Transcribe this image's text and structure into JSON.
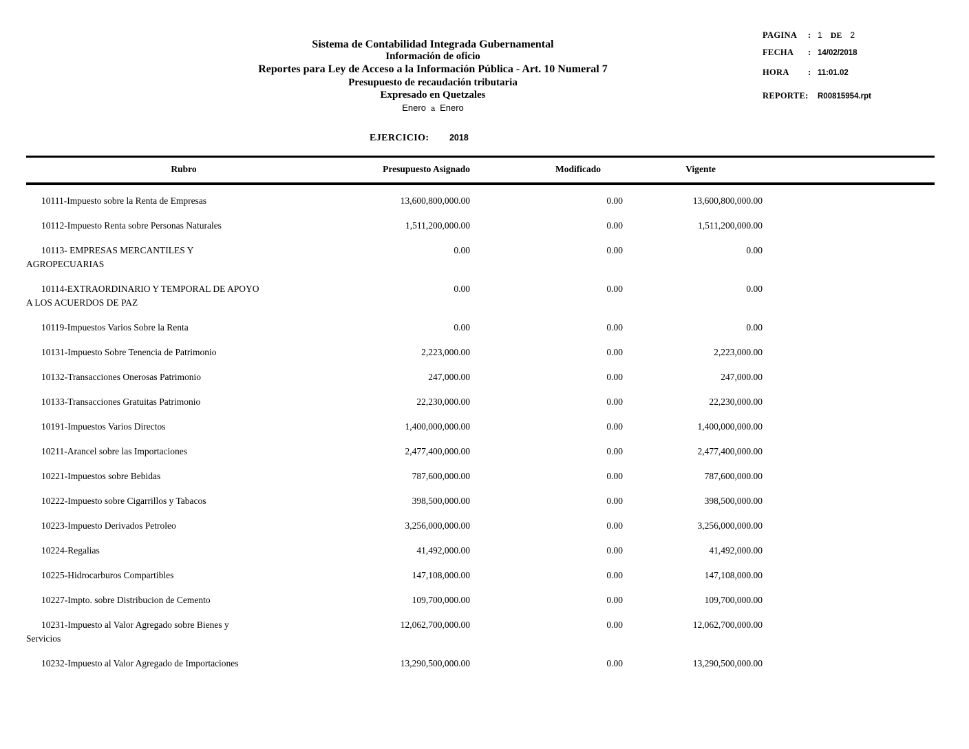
{
  "report_header": {
    "title_lines": [
      "Sistema de Contabilidad Integrada Gubernamental",
      "Información de oficio",
      "Reportes para Ley de Acceso a la Información Pública - Art. 10 Numeral 7",
      "Presupuesto de recaudación tributaria",
      "Expresado en Quetzales"
    ],
    "period": {
      "from": "Enero",
      "connector": "a",
      "to": "Enero"
    },
    "ejercicio_label": "EJERCICIO:",
    "ejercicio_value": "2018"
  },
  "meta": {
    "pagina": {
      "label": "PAGINA",
      "sep": ":",
      "value": "1",
      "de_label": "DE",
      "total": "2"
    },
    "fecha": {
      "label": "FECHA",
      "sep": ":",
      "value": "14/02/2018"
    },
    "hora": {
      "label": "HORA",
      "sep": ":",
      "value": "11:01.02"
    },
    "reporte": {
      "label": "REPORTE:",
      "value": "R00815954.rpt"
    }
  },
  "table": {
    "columns": [
      "Rubro",
      "Presupuesto Asignado",
      "Modificado",
      "Vigente"
    ],
    "rows": [
      {
        "rubro_lines": [
          "10111-Impuesto sobre la Renta de Empresas"
        ],
        "asignado": "13,600,800,000.00",
        "modificado": "0.00",
        "vigente": "13,600,800,000.00"
      },
      {
        "rubro_lines": [
          "10112-Impuesto Renta sobre Personas Naturales"
        ],
        "asignado": "1,511,200,000.00",
        "modificado": "0.00",
        "vigente": "1,511,200,000.00"
      },
      {
        "rubro_lines": [
          "10113- EMPRESAS MERCANTILES Y",
          "AGROPECUARIAS"
        ],
        "asignado": "0.00",
        "modificado": "0.00",
        "vigente": "0.00"
      },
      {
        "rubro_lines": [
          "10114-EXTRAORDINARIO Y TEMPORAL DE APOYO",
          "A LOS ACUERDOS DE PAZ"
        ],
        "asignado": "0.00",
        "modificado": "0.00",
        "vigente": "0.00"
      },
      {
        "rubro_lines": [
          "10119-Impuestos Varios Sobre la Renta"
        ],
        "asignado": "0.00",
        "modificado": "0.00",
        "vigente": "0.00"
      },
      {
        "rubro_lines": [
          "10131-Impuesto Sobre Tenencia de Patrimonio"
        ],
        "asignado": "2,223,000.00",
        "modificado": "0.00",
        "vigente": "2,223,000.00"
      },
      {
        "rubro_lines": [
          "10132-Transacciones Onerosas Patrimonio"
        ],
        "asignado": "247,000.00",
        "modificado": "0.00",
        "vigente": "247,000.00"
      },
      {
        "rubro_lines": [
          "10133-Transacciones Gratuitas Patrimonio"
        ],
        "asignado": "22,230,000.00",
        "modificado": "0.00",
        "vigente": "22,230,000.00"
      },
      {
        "rubro_lines": [
          "10191-Impuestos Varios Directos"
        ],
        "asignado": "1,400,000,000.00",
        "modificado": "0.00",
        "vigente": "1,400,000,000.00"
      },
      {
        "rubro_lines": [
          "10211-Arancel sobre las Importaciones"
        ],
        "asignado": "2,477,400,000.00",
        "modificado": "0.00",
        "vigente": "2,477,400,000.00"
      },
      {
        "rubro_lines": [
          "10221-Impuestos sobre Bebidas"
        ],
        "asignado": "787,600,000.00",
        "modificado": "0.00",
        "vigente": "787,600,000.00"
      },
      {
        "rubro_lines": [
          "10222-Impuesto sobre Cigarrillos y Tabacos"
        ],
        "asignado": "398,500,000.00",
        "modificado": "0.00",
        "vigente": "398,500,000.00"
      },
      {
        "rubro_lines": [
          "10223-Impuesto Derivados Petroleo"
        ],
        "asignado": "3,256,000,000.00",
        "modificado": "0.00",
        "vigente": "3,256,000,000.00"
      },
      {
        "rubro_lines": [
          "10224-Regalias"
        ],
        "asignado": "41,492,000.00",
        "modificado": "0.00",
        "vigente": "41,492,000.00"
      },
      {
        "rubro_lines": [
          "10225-Hidrocarburos Compartibles"
        ],
        "asignado": "147,108,000.00",
        "modificado": "0.00",
        "vigente": "147,108,000.00"
      },
      {
        "rubro_lines": [
          "10227-Impto. sobre Distribucion de Cemento"
        ],
        "asignado": "109,700,000.00",
        "modificado": "0.00",
        "vigente": "109,700,000.00"
      },
      {
        "rubro_lines": [
          "10231-Impuesto al Valor Agregado sobre Bienes y",
          "Servicios"
        ],
        "asignado": "12,062,700,000.00",
        "modificado": "0.00",
        "vigente": "12,062,700,000.00"
      },
      {
        "rubro_lines": [
          "10232-Impuesto al Valor Agregado de Importaciones"
        ],
        "asignado": "13,290,500,000.00",
        "modificado": "0.00",
        "vigente": "13,290,500,000.00"
      }
    ]
  }
}
